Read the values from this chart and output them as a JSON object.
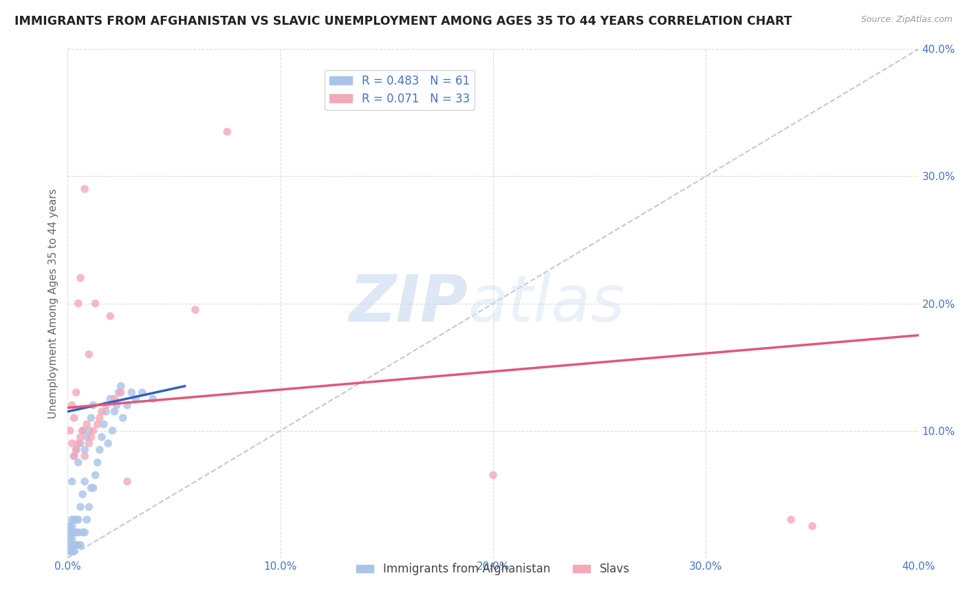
{
  "title": "IMMIGRANTS FROM AFGHANISTAN VS SLAVIC UNEMPLOYMENT AMONG AGES 35 TO 44 YEARS CORRELATION CHART",
  "source": "Source: ZipAtlas.com",
  "ylabel": "Unemployment Among Ages 35 to 44 years",
  "xlim": [
    0.0,
    0.4
  ],
  "ylim": [
    0.0,
    0.4
  ],
  "xticks": [
    0.0,
    0.1,
    0.2,
    0.3,
    0.4
  ],
  "yticks": [
    0.0,
    0.1,
    0.2,
    0.3,
    0.4
  ],
  "grid_color": "#d8d8d8",
  "background_color": "#ffffff",
  "watermark_zip": "ZIP",
  "watermark_atlas": "atlas",
  "legend1_R": "0.483",
  "legend1_N": "61",
  "legend2_R": "0.071",
  "legend2_N": "33",
  "blue_color": "#a8c4e8",
  "pink_color": "#f4a8b8",
  "blue_line_color": "#3060c0",
  "pink_line_color": "#e05878",
  "diag_line_color": "#b8c4d8",
  "tick_color": "#4472c4",
  "legend_R_color": "#4472c4",
  "afg_x": [
    0.001,
    0.001,
    0.001,
    0.001,
    0.001,
    0.002,
    0.002,
    0.002,
    0.002,
    0.002,
    0.002,
    0.002,
    0.003,
    0.003,
    0.003,
    0.003,
    0.003,
    0.004,
    0.004,
    0.004,
    0.004,
    0.005,
    0.005,
    0.005,
    0.005,
    0.006,
    0.006,
    0.006,
    0.007,
    0.007,
    0.007,
    0.008,
    0.008,
    0.008,
    0.009,
    0.009,
    0.01,
    0.01,
    0.011,
    0.011,
    0.012,
    0.012,
    0.013,
    0.014,
    0.015,
    0.016,
    0.017,
    0.018,
    0.019,
    0.02,
    0.021,
    0.022,
    0.023,
    0.024,
    0.025,
    0.026,
    0.028,
    0.03,
    0.032,
    0.035,
    0.04
  ],
  "afg_y": [
    0.005,
    0.01,
    0.015,
    0.02,
    0.025,
    0.005,
    0.01,
    0.015,
    0.02,
    0.025,
    0.03,
    0.06,
    0.005,
    0.01,
    0.02,
    0.03,
    0.08,
    0.01,
    0.02,
    0.03,
    0.085,
    0.01,
    0.02,
    0.03,
    0.075,
    0.01,
    0.04,
    0.09,
    0.02,
    0.05,
    0.1,
    0.02,
    0.06,
    0.085,
    0.03,
    0.095,
    0.04,
    0.1,
    0.055,
    0.11,
    0.055,
    0.12,
    0.065,
    0.075,
    0.085,
    0.095,
    0.105,
    0.115,
    0.09,
    0.125,
    0.1,
    0.115,
    0.12,
    0.13,
    0.135,
    0.11,
    0.12,
    0.13,
    0.125,
    0.13,
    0.125
  ],
  "slavs_x": [
    0.001,
    0.002,
    0.002,
    0.003,
    0.003,
    0.004,
    0.004,
    0.005,
    0.005,
    0.006,
    0.006,
    0.007,
    0.008,
    0.008,
    0.009,
    0.01,
    0.01,
    0.011,
    0.012,
    0.013,
    0.014,
    0.015,
    0.016,
    0.018,
    0.02,
    0.022,
    0.025,
    0.028,
    0.06,
    0.075,
    0.2,
    0.34,
    0.35
  ],
  "slavs_y": [
    0.1,
    0.09,
    0.12,
    0.08,
    0.11,
    0.085,
    0.13,
    0.09,
    0.2,
    0.095,
    0.22,
    0.1,
    0.08,
    0.29,
    0.105,
    0.09,
    0.16,
    0.095,
    0.1,
    0.2,
    0.105,
    0.11,
    0.115,
    0.12,
    0.19,
    0.125,
    0.13,
    0.06,
    0.195,
    0.335,
    0.065,
    0.03,
    0.025
  ],
  "afg_line_x": [
    0.0,
    0.055
  ],
  "afg_line_y": [
    0.115,
    0.135
  ],
  "slavs_line_x": [
    0.0,
    0.4
  ],
  "slavs_line_y": [
    0.118,
    0.175
  ]
}
